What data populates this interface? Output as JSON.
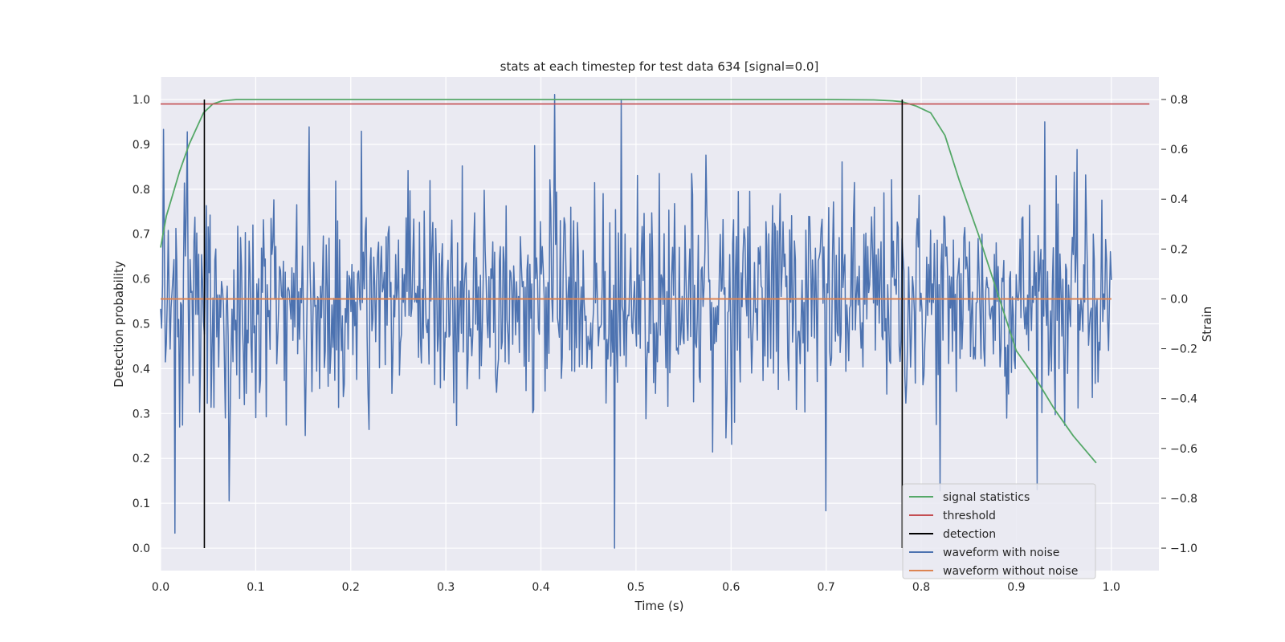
{
  "chart_data": {
    "type": "line",
    "title": "stats at each timestep for test data 634 [signal=0.0]",
    "xlabel": "Time (s)",
    "ylabel_left": "Detection probability",
    "ylabel_right": "Strain",
    "xlim": [
      0.0,
      1.05
    ],
    "ylim_left": [
      -0.05,
      1.05
    ],
    "ylim_right": [
      -1.09,
      0.89
    ],
    "x_ticks": [
      "0.0",
      "0.1",
      "0.2",
      "0.3",
      "0.4",
      "0.5",
      "0.6",
      "0.7",
      "0.8",
      "0.9",
      "1.0"
    ],
    "y_ticks_left": [
      "0.0",
      "0.1",
      "0.2",
      "0.3",
      "0.4",
      "0.5",
      "0.6",
      "0.7",
      "0.8",
      "0.9",
      "1.0"
    ],
    "y_ticks_right": [
      "−1.0",
      "−0.8",
      "−0.6",
      "−0.4",
      "−0.2",
      "0.0",
      "0.2",
      "0.4",
      "0.6",
      "0.8"
    ],
    "grid": true,
    "legend_position": "bottom-right",
    "legend": [
      {
        "label": "signal statistics",
        "color": "#55a868"
      },
      {
        "label": "threshold",
        "color": "#c44e52"
      },
      {
        "label": "detection",
        "color": "#000000"
      },
      {
        "label": "waveform with noise",
        "color": "#4c72b0"
      },
      {
        "label": "waveform without noise",
        "color": "#dd8452"
      }
    ],
    "signal_statistics": {
      "x": [
        0.0,
        0.006,
        0.013,
        0.02,
        0.03,
        0.045,
        0.055,
        0.065,
        0.08,
        0.1,
        0.2,
        0.3,
        0.4,
        0.5,
        0.6,
        0.7,
        0.75,
        0.77,
        0.78,
        0.795,
        0.81,
        0.825,
        0.84,
        0.86,
        0.88,
        0.9,
        0.92,
        0.94,
        0.96,
        0.984
      ],
      "y": [
        0.67,
        0.74,
        0.79,
        0.84,
        0.9,
        0.97,
        0.99,
        0.997,
        1.0,
        1.0,
        1.0,
        1.0,
        1.0,
        1.0,
        1.0,
        1.0,
        0.999,
        0.997,
        0.995,
        0.985,
        0.97,
        0.92,
        0.82,
        0.7,
        0.57,
        0.44,
        0.38,
        0.31,
        0.25,
        0.19
      ]
    },
    "threshold": {
      "y": 0.99,
      "x_range": [
        0.0,
        1.04
      ]
    },
    "detections": [
      0.046,
      0.78
    ],
    "waveform_without_noise": {
      "strain": 0.0,
      "x_range": [
        0.0,
        1.0
      ]
    },
    "waveform_with_noise": {
      "x_range": [
        0.0,
        1.0
      ],
      "n_points": 1000,
      "approx_std": 0.22,
      "notable_points": [
        {
          "x": 0.003,
          "y": 0.68
        },
        {
          "x": 0.015,
          "y": -0.94
        },
        {
          "x": 0.028,
          "y": 0.67
        },
        {
          "x": 0.072,
          "y": -0.81
        },
        {
          "x": 0.156,
          "y": 0.69
        },
        {
          "x": 0.414,
          "y": 0.82
        },
        {
          "x": 0.477,
          "y": -1.0
        },
        {
          "x": 0.484,
          "y": 0.8
        },
        {
          "x": 0.7,
          "y": -0.85
        },
        {
          "x": 0.82,
          "y": -0.77
        },
        {
          "x": 0.93,
          "y": 0.71
        }
      ]
    }
  }
}
